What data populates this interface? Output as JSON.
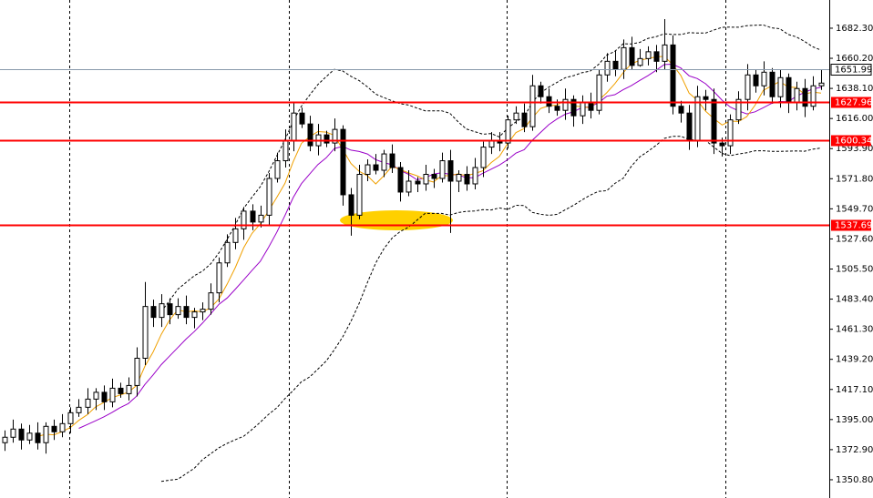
{
  "chart_data": {
    "type": "candlestick",
    "open": [
      1378,
      1382,
      1388,
      1380,
      1385,
      1378,
      1390,
      1386,
      1392,
      1400,
      1404,
      1410,
      1415,
      1408,
      1418,
      1414,
      1420,
      1440,
      1478,
      1470,
      1480,
      1472,
      1478,
      1470,
      1474,
      1476,
      1488,
      1510,
      1525,
      1535,
      1548,
      1540,
      1545,
      1572,
      1585,
      1600,
      1620,
      1612,
      1596,
      1604,
      1598,
      1608,
      1560,
      1545,
      1575,
      1582,
      1578,
      1590,
      1580,
      1562,
      1570,
      1568,
      1575,
      1572,
      1585,
      1570,
      1575,
      1568,
      1580,
      1595,
      1600,
      1598,
      1615,
      1620,
      1610,
      1640,
      1632,
      1625,
      1622,
      1630,
      1618,
      1628,
      1622,
      1648,
      1658,
      1652,
      1668,
      1655,
      1660,
      1665,
      1658,
      1670,
      1625,
      1620,
      1600,
      1632,
      1630,
      1598,
      1596,
      1615,
      1630,
      1648,
      1640,
      1650,
      1632,
      1646,
      1628,
      1638,
      1625,
      1640
    ],
    "high": [
      1387,
      1395,
      1392,
      1391,
      1393,
      1393,
      1395,
      1399,
      1404,
      1410,
      1418,
      1418,
      1420,
      1425,
      1422,
      1426,
      1448,
      1496,
      1483,
      1487,
      1484,
      1484,
      1486,
      1477,
      1481,
      1495,
      1514,
      1531,
      1543,
      1551,
      1553,
      1552,
      1576,
      1591,
      1608,
      1628,
      1624,
      1618,
      1612,
      1607,
      1616,
      1611,
      1565,
      1582,
      1586,
      1590,
      1593,
      1597,
      1584,
      1578,
      1573,
      1582,
      1579,
      1591,
      1593,
      1578,
      1581,
      1587,
      1599,
      1606,
      1606,
      1618,
      1625,
      1627,
      1648,
      1643,
      1638,
      1630,
      1638,
      1633,
      1633,
      1635,
      1652,
      1664,
      1666,
      1674,
      1676,
      1667,
      1669,
      1670,
      1689,
      1677,
      1629,
      1626,
      1640,
      1637,
      1638,
      1602,
      1619,
      1636,
      1656,
      1652,
      1658,
      1653,
      1652,
      1649,
      1643,
      1645,
      1647,
      1652
    ],
    "low": [
      1372,
      1378,
      1373,
      1377,
      1373,
      1370,
      1380,
      1382,
      1385,
      1397,
      1399,
      1402,
      1402,
      1404,
      1411,
      1409,
      1412,
      1435,
      1463,
      1463,
      1465,
      1469,
      1465,
      1462,
      1468,
      1472,
      1481,
      1507,
      1520,
      1527,
      1534,
      1536,
      1538,
      1569,
      1580,
      1592,
      1609,
      1592,
      1589,
      1595,
      1592,
      1552,
      1530,
      1542,
      1570,
      1575,
      1573,
      1576,
      1555,
      1559,
      1562,
      1563,
      1565,
      1569,
      1532,
      1562,
      1563,
      1564,
      1573,
      1590,
      1592,
      1594,
      1612,
      1606,
      1607,
      1627,
      1620,
      1618,
      1615,
      1610,
      1612,
      1616,
      1619,
      1643,
      1647,
      1645,
      1652,
      1654,
      1655,
      1650,
      1652,
      1619,
      1613,
      1593,
      1595,
      1622,
      1590,
      1588,
      1590,
      1612,
      1622,
      1635,
      1633,
      1627,
      1624,
      1620,
      1622,
      1617,
      1622,
      1637
    ],
    "close": [
      1382,
      1388,
      1380,
      1385,
      1378,
      1390,
      1386,
      1392,
      1400,
      1404,
      1410,
      1415,
      1408,
      1418,
      1414,
      1420,
      1440,
      1478,
      1470,
      1480,
      1472,
      1478,
      1470,
      1474,
      1476,
      1488,
      1510,
      1525,
      1535,
      1548,
      1540,
      1545,
      1572,
      1585,
      1600,
      1620,
      1612,
      1596,
      1604,
      1598,
      1608,
      1560,
      1545,
      1575,
      1582,
      1578,
      1590,
      1580,
      1562,
      1570,
      1568,
      1575,
      1572,
      1585,
      1570,
      1575,
      1568,
      1580,
      1595,
      1600,
      1598,
      1615,
      1620,
      1610,
      1640,
      1632,
      1625,
      1622,
      1630,
      1618,
      1628,
      1622,
      1648,
      1658,
      1652,
      1668,
      1655,
      1660,
      1665,
      1658,
      1670,
      1625,
      1620,
      1600,
      1632,
      1630,
      1598,
      1596,
      1615,
      1630,
      1648,
      1640,
      1650,
      1632,
      1646,
      1628,
      1638,
      1625,
      1640,
      1642
    ],
    "up_color": "#ffffff",
    "down_color": "#000000",
    "ylim": [
      1337.4,
      1703.0
    ],
    "yticks": [
      {
        "value": 1682.3,
        "label": "1682.30"
      },
      {
        "value": 1660.2,
        "label": "1660.20"
      },
      {
        "value": 1638.1,
        "label": "1638.10"
      },
      {
        "value": 1616.0,
        "label": "1616.00"
      },
      {
        "value": 1593.9,
        "label": "1593.90"
      },
      {
        "value": 1571.8,
        "label": "1571.80"
      },
      {
        "value": 1549.7,
        "label": "1549.70"
      },
      {
        "value": 1527.6,
        "label": "1527.60"
      },
      {
        "value": 1505.5,
        "label": "1505.50"
      },
      {
        "value": 1483.4,
        "label": "1483.40"
      },
      {
        "value": 1461.3,
        "label": "1461.30"
      },
      {
        "value": 1439.2,
        "label": "1439.20"
      },
      {
        "value": 1417.1,
        "label": "1417.10"
      },
      {
        "value": 1395.0,
        "label": "1395.00"
      },
      {
        "value": 1372.9,
        "label": "1372.90"
      },
      {
        "value": 1350.8,
        "label": "1350.80"
      }
    ],
    "hlines": [
      {
        "value": 1627.96,
        "label": "1627.96",
        "color": "#ff0000"
      },
      {
        "value": 1600.34,
        "label": "1600.34",
        "color": "#ff0000"
      },
      {
        "value": 1537.69,
        "label": "1537.69",
        "color": "#ff0000"
      }
    ],
    "price_line": {
      "value": 1651.99,
      "label": "1651.99",
      "color": "#8899aa"
    }
  }
}
